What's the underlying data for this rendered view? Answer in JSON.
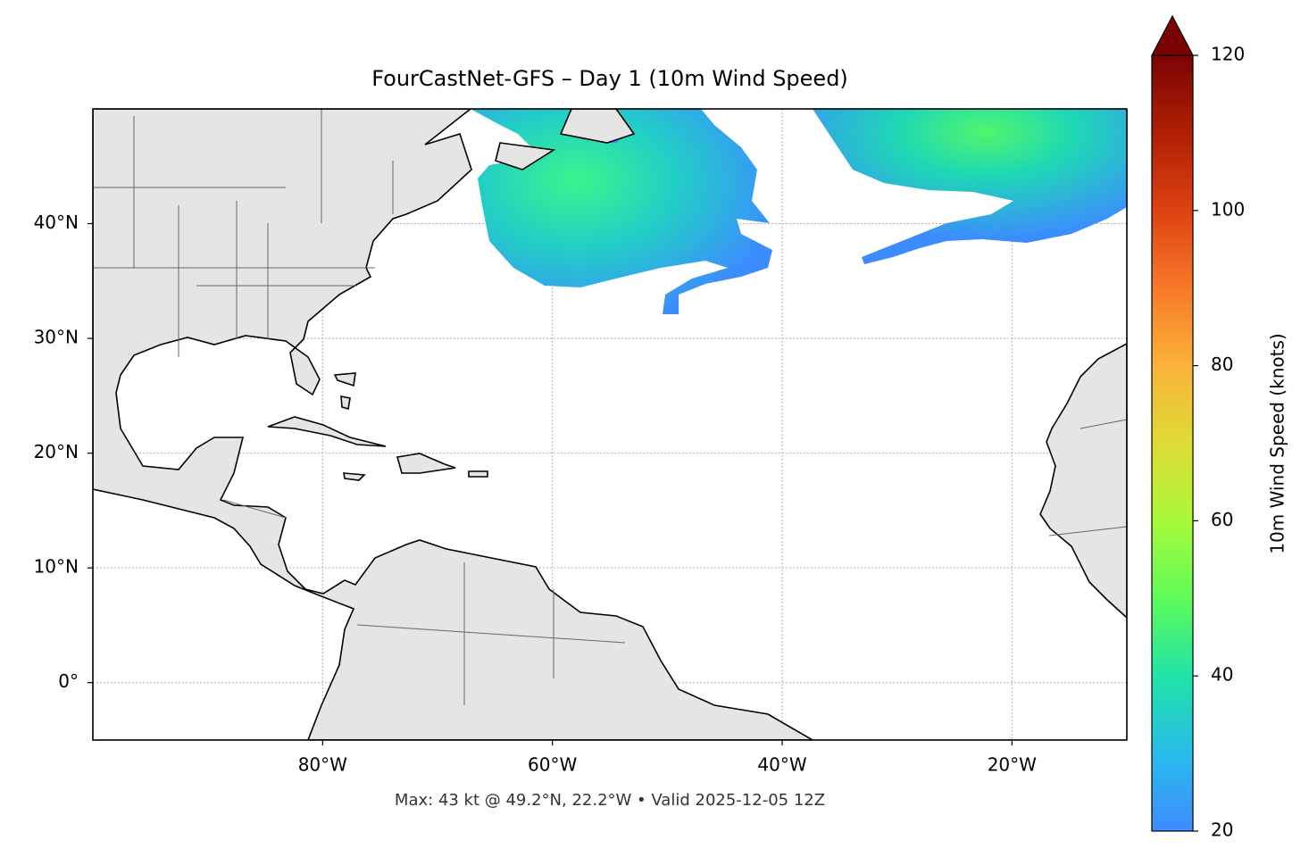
{
  "chart_data": {
    "type": "map",
    "title": "FourCastNet-GFS – Day 1 (10m Wind Speed)",
    "xlim": [
      -100,
      -10
    ],
    "ylim": [
      -5,
      50
    ],
    "xticks": [
      {
        "value": -80,
        "label": "80°W"
      },
      {
        "value": -60,
        "label": "60°W"
      },
      {
        "value": -40,
        "label": "40°W"
      },
      {
        "value": -20,
        "label": "20°W"
      }
    ],
    "yticks": [
      {
        "value": 0,
        "label": "0°"
      },
      {
        "value": 10,
        "label": "10°N"
      },
      {
        "value": 20,
        "label": "20°N"
      },
      {
        "value": 30,
        "label": "30°N"
      },
      {
        "value": 40,
        "label": "40°N"
      }
    ],
    "grid": true,
    "colorbar": {
      "label": "10m Wind Speed (knots)",
      "clim": [
        20,
        120
      ],
      "ticks": [
        20,
        40,
        60,
        80,
        100,
        120
      ],
      "extend": "max"
    },
    "annotation": "Max: 43 kt @ 49.2°N, 22.2°W • Valid 2025-12-05 12Z"
  }
}
